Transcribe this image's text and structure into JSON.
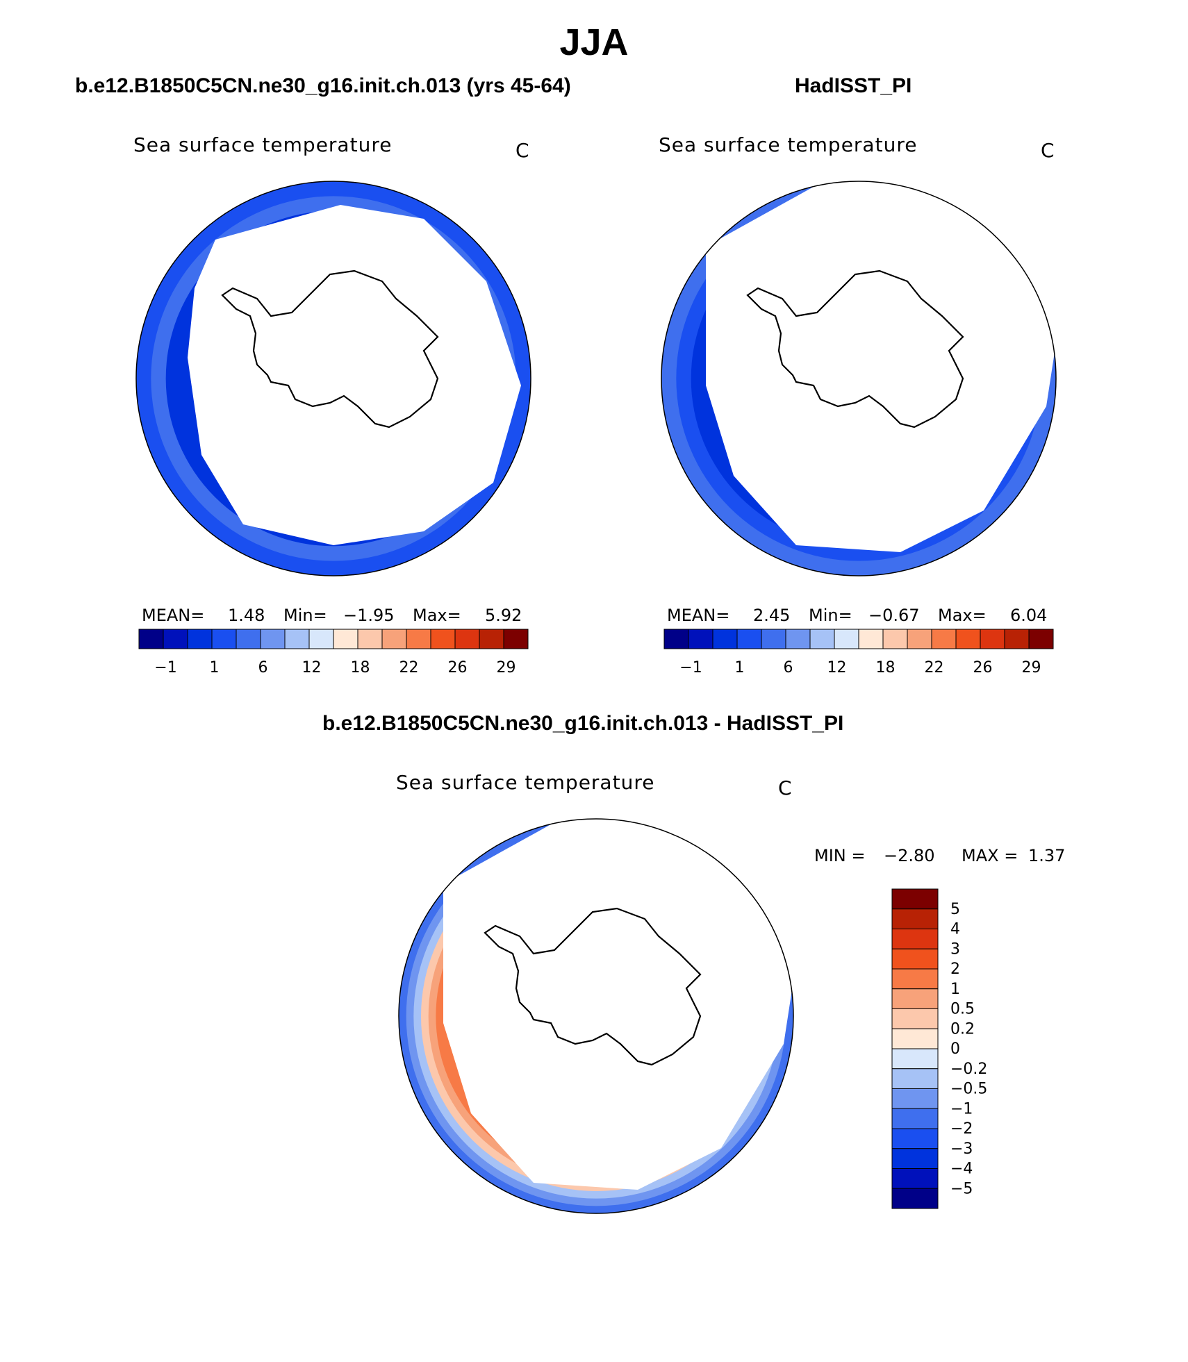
{
  "figure": {
    "title": "JJA",
    "left_title": "b.e12.B1850C5CN.ne30_g16.init.ch.013 (yrs 45-64)",
    "right_title": "HadISST_PI",
    "diff_title": "b.e12.B1850C5CN.ne30_g16.init.ch.013 - HadISST_PI"
  },
  "panels": {
    "model": {
      "variable": "Sea surface temperature",
      "units": "C",
      "mean_label": "MEAN=",
      "mean": "1.48",
      "min_label": "Min=",
      "min": "−1.95",
      "max_label": "Max=",
      "max": "5.92"
    },
    "obs": {
      "variable": "Sea surface temperature",
      "units": "C",
      "mean_label": "MEAN=",
      "mean": "2.45",
      "min_label": "Min=",
      "min": "−0.67",
      "max_label": "Max=",
      "max": "6.04"
    },
    "diff": {
      "variable": "Sea surface temperature",
      "units": "C",
      "min_label": "MIN =",
      "min": "−2.80",
      "max_label": "MAX =",
      "max": "1.37"
    }
  },
  "chart_data": [
    {
      "type": "heatmap",
      "name": "model-sst",
      "projection": "south-polar-stereographic",
      "colorbar": {
        "orientation": "horizontal",
        "tick_labels": [
          "−1",
          "1",
          "6",
          "12",
          "18",
          "22",
          "26",
          "29"
        ],
        "colors": [
          "#000088",
          "#0011bb",
          "#0033dd",
          "#1a4ff0",
          "#3f6fee",
          "#6f95f0",
          "#a6c2f6",
          "#d8e7fb",
          "#ffe8d6",
          "#fcc8ac",
          "#f7a27a",
          "#f77a46",
          "#f0521d",
          "#dd3510",
          "#b82205",
          "#7c0000"
        ]
      },
      "field_levels": [
        "#1a4ff0",
        "#3f6fee",
        "#0033dd"
      ]
    },
    {
      "type": "heatmap",
      "name": "obs-sst",
      "projection": "south-polar-stereographic",
      "colorbar": {
        "orientation": "horizontal",
        "tick_labels": [
          "−1",
          "1",
          "6",
          "12",
          "18",
          "22",
          "26",
          "29"
        ],
        "colors": [
          "#000088",
          "#0011bb",
          "#0033dd",
          "#1a4ff0",
          "#3f6fee",
          "#6f95f0",
          "#a6c2f6",
          "#d8e7fb",
          "#ffe8d6",
          "#fcc8ac",
          "#f7a27a",
          "#f77a46",
          "#f0521d",
          "#dd3510",
          "#b82205",
          "#7c0000"
        ]
      },
      "field_levels": [
        "#3f6fee",
        "#1a4ff0",
        "#0033dd"
      ]
    },
    {
      "type": "heatmap",
      "name": "difference-sst",
      "projection": "south-polar-stereographic",
      "colorbar": {
        "orientation": "vertical",
        "tick_labels": [
          "5",
          "4",
          "3",
          "2",
          "1",
          "0.5",
          "0.2",
          "0",
          "−0.2",
          "−0.5",
          "−1",
          "−2",
          "−3",
          "−4",
          "−5"
        ],
        "colors": [
          "#7c0000",
          "#b82205",
          "#dd3510",
          "#f0521d",
          "#f77a46",
          "#f7a27a",
          "#fcc8ac",
          "#ffe8d6",
          "#d8e7fb",
          "#a6c2f6",
          "#6f95f0",
          "#3f6fee",
          "#1a4ff0",
          "#0033dd",
          "#0011bb",
          "#000088"
        ]
      },
      "field_levels": [
        "#3f6fee",
        "#6f95f0",
        "#a6c2f6",
        "#fcc8ac",
        "#f7a27a",
        "#f77a46"
      ]
    }
  ]
}
